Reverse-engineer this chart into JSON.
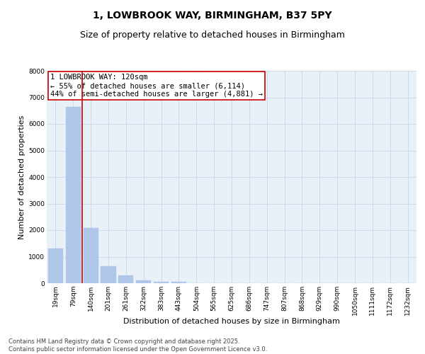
{
  "title_line1": "1, LOWBROOK WAY, BIRMINGHAM, B37 5PY",
  "title_line2": "Size of property relative to detached houses in Birmingham",
  "xlabel": "Distribution of detached houses by size in Birmingham",
  "ylabel": "Number of detached properties",
  "categories": [
    "19sqm",
    "79sqm",
    "140sqm",
    "201sqm",
    "261sqm",
    "322sqm",
    "383sqm",
    "443sqm",
    "504sqm",
    "565sqm",
    "625sqm",
    "686sqm",
    "747sqm",
    "807sqm",
    "868sqm",
    "929sqm",
    "990sqm",
    "1050sqm",
    "1111sqm",
    "1172sqm",
    "1232sqm"
  ],
  "values": [
    1300,
    6650,
    2080,
    650,
    290,
    110,
    65,
    50,
    0,
    0,
    0,
    0,
    0,
    0,
    0,
    0,
    0,
    0,
    0,
    0,
    0
  ],
  "bar_color": "#aec6e8",
  "bar_edge_color": "#aec6e8",
  "vline_color": "#cc0000",
  "vline_pos": 1.5,
  "ylim": [
    0,
    8000
  ],
  "yticks": [
    0,
    1000,
    2000,
    3000,
    4000,
    5000,
    6000,
    7000,
    8000
  ],
  "annotation_text": "1 LOWBROOK WAY: 120sqm\n← 55% of detached houses are smaller (6,114)\n44% of semi-detached houses are larger (4,881) →",
  "annotation_box_color": "#ffffff",
  "annotation_box_edge": "#cc0000",
  "grid_color": "#c8d8ea",
  "background_color": "#e8f0f8",
  "footer_line1": "Contains HM Land Registry data © Crown copyright and database right 2025.",
  "footer_line2": "Contains public sector information licensed under the Open Government Licence v3.0.",
  "title_fontsize": 10,
  "subtitle_fontsize": 9,
  "axis_label_fontsize": 8,
  "tick_fontsize": 6.5,
  "annotation_fontsize": 7.5,
  "footer_fontsize": 6
}
